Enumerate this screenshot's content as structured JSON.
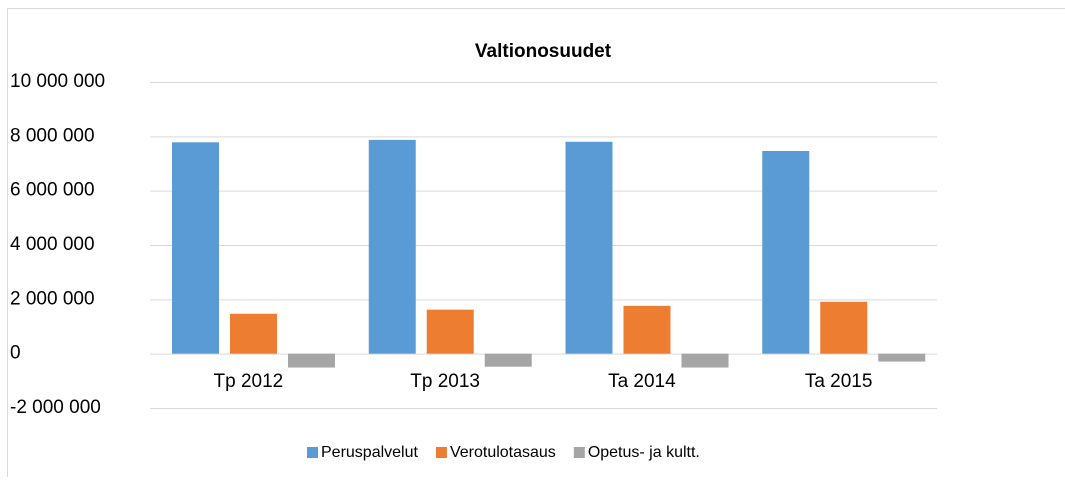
{
  "chart_data": {
    "type": "bar",
    "title": "Valtionosuudet",
    "categories": [
      "Tp 2012",
      "Tp 2013",
      "Ta 2014",
      "Ta 2015"
    ],
    "series": [
      {
        "name": "Peruspalvelut",
        "color": "#5b9bd5",
        "values": [
          7780000,
          7870000,
          7800000,
          7460000
        ]
      },
      {
        "name": "Verotulotasaus",
        "color": "#ed7d31",
        "values": [
          1470000,
          1620000,
          1760000,
          1910000
        ]
      },
      {
        "name": "Opetus- ja kultt.",
        "color": "#a5a5a5",
        "values": [
          -510000,
          -480000,
          -510000,
          -290000
        ]
      }
    ],
    "ylim": [
      -2000000,
      10000000
    ],
    "yticks": [
      {
        "value": -2000000,
        "label": "-2 000 000"
      },
      0,
      {
        "value": 2000000,
        "label": "2 000 000"
      },
      {
        "value": 4000000,
        "label": "4 000 000"
      },
      {
        "value": 6000000,
        "label": "6 000 000"
      },
      {
        "value": 8000000,
        "label": "8 000 000"
      },
      {
        "value": 10000000,
        "label": "10 000 000"
      }
    ],
    "grid": true,
    "legend": "bottom"
  }
}
